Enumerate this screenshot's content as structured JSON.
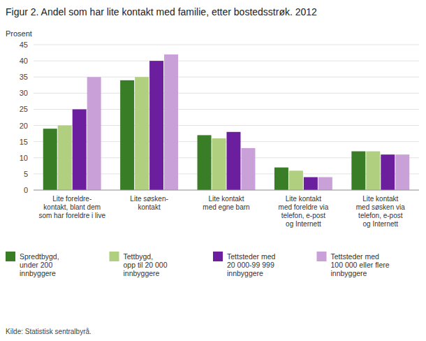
{
  "chart_data": {
    "type": "bar",
    "title": "Figur 2. Andel som har lite kontakt med familie, etter bostedsstrøk. 2012",
    "ylabel": "Prosent",
    "categories": [
      "Lite foreldre-\nkontakt, blant dem\nsom har foreldre i live",
      "Lite søsken-\nkontakt",
      "Lite kontakt\nmed egne barn",
      "Lite kontakt\nmed foreldre via\ntelefon, e-post\nog Internett",
      "Lite kontakt\nmed søsken via\ntelefon, e-post\nog Internett"
    ],
    "series": [
      {
        "name": "Spredtbygd,\nunder 200\ninnbyggere",
        "color": "#3a7d27",
        "values": [
          19,
          34,
          17,
          7,
          12
        ]
      },
      {
        "name": "Tettbygd,\nopp til 20 000\ninnbyggere",
        "color": "#b0d080",
        "values": [
          20,
          35,
          16,
          6,
          12
        ]
      },
      {
        "name": "Tettsteder med\n20 000-99 999\ninnbyggere",
        "color": "#6b1f9e",
        "values": [
          25,
          40,
          18,
          4,
          11
        ]
      },
      {
        "name": "Tettsteder med\n100 000 eller flere\ninnbyggere",
        "color": "#c9a0d8",
        "values": [
          35,
          42,
          13,
          4,
          11
        ]
      }
    ],
    "ylim": [
      0,
      45
    ],
    "yticks": [
      0,
      5,
      10,
      15,
      20,
      25,
      30,
      35,
      40,
      45
    ],
    "grid": true,
    "legend": "bottom",
    "annotations": [
      "Kilde: Statistisk sentralbyrå."
    ]
  }
}
